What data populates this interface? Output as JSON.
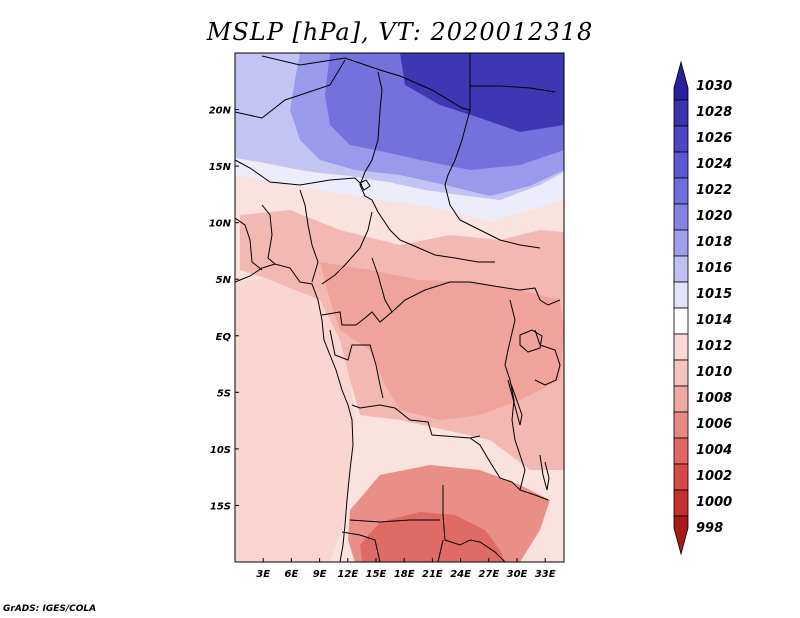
{
  "title": "MSLP [hPa], VT: 2020012318",
  "credit": "GrADS: IGES/COLA",
  "map": {
    "lon_range": [
      0,
      35
    ],
    "lat_range": [
      -20,
      25
    ],
    "lon_ticks": [
      "3E",
      "6E",
      "9E",
      "12E",
      "15E",
      "18E",
      "21E",
      "24E",
      "27E",
      "30E",
      "33E"
    ],
    "lat_ticks": [
      "20N",
      "15N",
      "10N",
      "5N",
      "EQ",
      "5S",
      "10S",
      "15S"
    ]
  },
  "colorbar": {
    "levels": [
      "1030",
      "1028",
      "1026",
      "1024",
      "1022",
      "1020",
      "1018",
      "1016",
      "1015",
      "1014",
      "1012",
      "1010",
      "1008",
      "1006",
      "1004",
      "1002",
      "1000",
      "998"
    ],
    "colors": [
      "#2a1f9c",
      "#3a33b0",
      "#4b46c2",
      "#5c5ad0",
      "#6e6edc",
      "#8484e4",
      "#9e9eee",
      "#c0c0f4",
      "#e2e2fa",
      "#ffffff",
      "#fbd8d4",
      "#f6c2bc",
      "#f0a9a2",
      "#e88882",
      "#e06862",
      "#d44a44",
      "#c5302a",
      "#aa1a16"
    ]
  },
  "regions": {
    "north_high": "#7272dc",
    "north_mid": "#9a9aec",
    "northwest": "#c4c4f4",
    "ne_corner": "#3c37b3",
    "transition": "#ececfb",
    "sahel": "#fae2de",
    "central": "#f4b8b2",
    "congo": "#f0a29c",
    "atlantic": "#fad6d0",
    "south_low": "#ea8e88",
    "kalahari": "#e06a64"
  }
}
